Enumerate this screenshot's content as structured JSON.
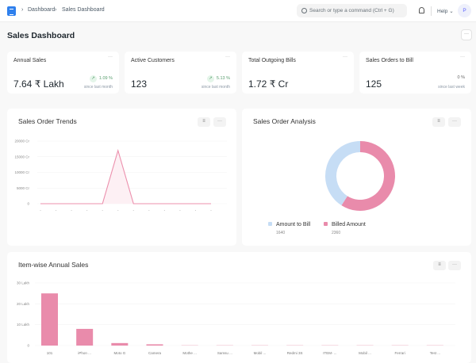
{
  "header": {
    "breadcrumbs": [
      "Dashboard",
      "Sales Dashboard"
    ],
    "search_placeholder": "Search or type a command (Ctrl + G)",
    "help": "Help",
    "avatar": "P"
  },
  "page": {
    "title": "Sales Dashboard",
    "menu": "···"
  },
  "cards": [
    {
      "title": "Annual Sales",
      "value": "7.64 ₹ Lakh",
      "change": "1.09 %",
      "since": "since last month",
      "trend": "up"
    },
    {
      "title": "Active Customers",
      "value": "123",
      "change": "5.13 %",
      "since": "since last month",
      "trend": "up"
    },
    {
      "title": "Total Outgoing Bills",
      "value": "1.72 ₹ Cr",
      "change": "",
      "since": "",
      "trend": "none"
    },
    {
      "title": "Sales Orders to Bill",
      "value": "125",
      "change": "0 %",
      "since": "since last week",
      "trend": "none"
    }
  ],
  "colors": {
    "pink": "#e98bab",
    "blue": "#c6ddf5",
    "green": "#5a9e6f"
  },
  "chart_data": [
    {
      "type": "line",
      "title": "Sales Order Trends",
      "yticks": [
        "0",
        "5000 Cr",
        "10000 Cr",
        "15000 Cr",
        "20000 Cr"
      ],
      "ylim": [
        0,
        20000
      ],
      "values": [
        0,
        0,
        0,
        0,
        0,
        17000,
        0,
        0,
        0,
        0,
        0,
        0
      ],
      "grid": true
    },
    {
      "type": "pie",
      "title": "Sales Order Analysis",
      "donut": true,
      "series": [
        {
          "name": "Amount to Bill",
          "value": 1640,
          "color": "#c6ddf5"
        },
        {
          "name": "Billed Amount",
          "value": 2360,
          "color": "#e98bab"
        }
      ],
      "legend": "bottom"
    },
    {
      "type": "bar",
      "title": "Item-wise Annual Sales",
      "categories": [
        "101",
        "iPhon ...",
        "Moto G",
        "Camera",
        "Mothe ...",
        "Samsu ...",
        "Mobil ...",
        "Redmi 3S",
        "ITEM- ...",
        "Mobil ...",
        "Ferrari",
        "Test ..."
      ],
      "values": [
        25,
        8,
        1.2,
        0.6,
        0.25,
        0.25,
        0.2,
        0.1,
        0.05,
        0.02,
        0.01,
        0.01
      ],
      "yticks": [
        "0",
        "10 Lakh",
        "20 Lakh",
        "30 Lakh"
      ],
      "ylim": [
        0,
        30
      ],
      "ylabel": "",
      "grid": true
    }
  ]
}
